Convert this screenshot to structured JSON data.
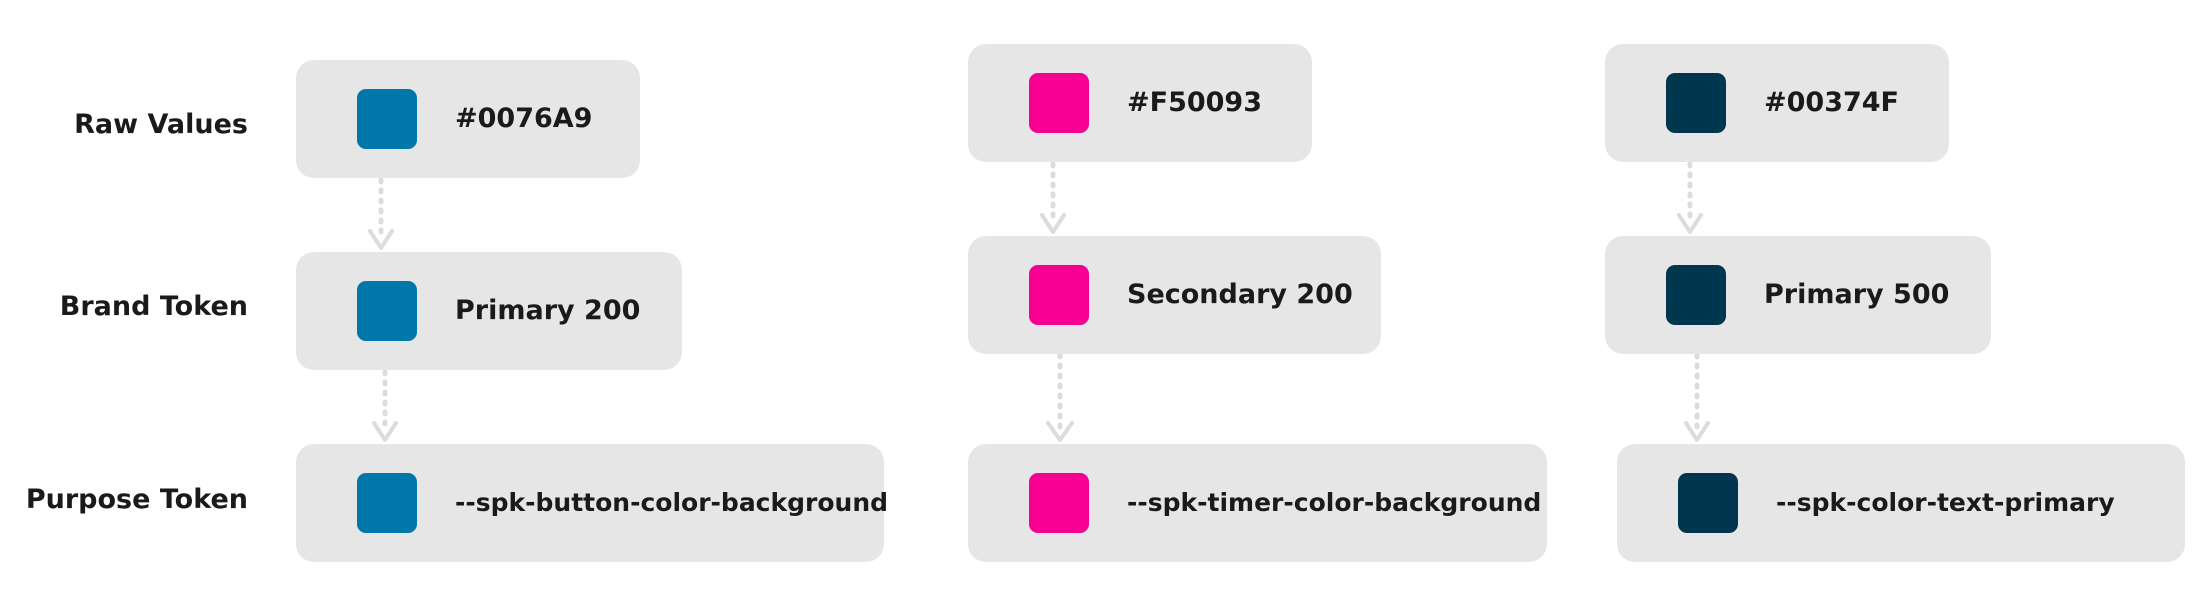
{
  "row_labels": {
    "raw": "Raw Values",
    "brand": "Brand Token",
    "purpose": "Purpose Token"
  },
  "columns": [
    {
      "color": "#0076A9",
      "raw": "#0076A9",
      "brand": "Primary 200",
      "purpose": "--spk-button-color-background"
    },
    {
      "color": "#F50093",
      "raw": "#F50093",
      "brand": "Secondary 200",
      "purpose": "--spk-timer-color-background"
    },
    {
      "color": "#00374F",
      "raw": "#00374F",
      "brand": "Primary 500",
      "purpose": "--spk-color-text-primary"
    }
  ],
  "connector_color": "#dcdcdc"
}
